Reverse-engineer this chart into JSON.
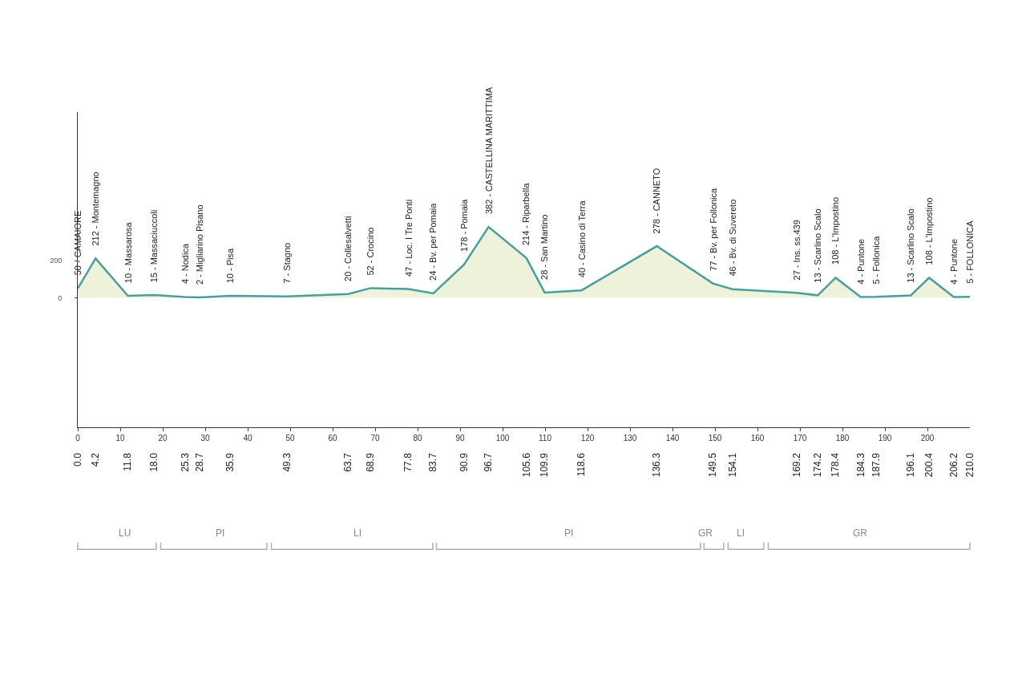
{
  "chart_data": {
    "type": "area",
    "x": [
      0.0,
      4.2,
      11.8,
      18.0,
      25.3,
      28.7,
      35.9,
      49.3,
      63.7,
      68.9,
      77.8,
      83.7,
      90.9,
      96.7,
      105.6,
      109.9,
      118.6,
      136.3,
      149.5,
      154.1,
      169.2,
      174.2,
      178.4,
      184.3,
      187.9,
      196.1,
      200.4,
      206.2,
      210.0
    ],
    "series": [
      {
        "color": "#4a9e9c",
        "values": [
          50,
          212,
          10,
          15,
          4,
          2,
          10,
          7,
          20,
          52,
          47,
          24,
          178,
          382,
          214,
          28,
          40,
          278,
          77,
          46,
          27,
          13,
          108,
          4,
          5,
          13,
          108,
          4,
          5
        ]
      }
    ],
    "xlim": [
      0,
      210
    ],
    "xticks": [
      0,
      10,
      20,
      30,
      40,
      50,
      60,
      70,
      80,
      90,
      100,
      110,
      120,
      130,
      140,
      150,
      160,
      170,
      180,
      190,
      200
    ],
    "ylim": [
      -700,
      1000
    ],
    "yticks": [
      0,
      200
    ],
    "x2lim": [
      0,
      210
    ],
    "x2ticks": [
      {
        "value": 0.0,
        "label": "0.0"
      },
      4.2,
      11.8,
      {
        "value": 18.0,
        "label": "18.0"
      },
      25.3,
      28.7,
      35.9,
      49.3,
      63.7,
      68.9,
      77.8,
      83.7,
      90.9,
      96.7,
      105.6,
      109.9,
      118.6,
      136.3,
      149.5,
      154.1,
      169.2,
      174.2,
      178.4,
      184.3,
      187.9,
      196.1,
      200.4,
      206.2,
      {
        "value": 210.0,
        "label": "210.0"
      }
    ],
    "annotations": [
      {
        "text": "50 - CAMAIORE",
        "x": 0.0,
        "y": 50
      },
      {
        "text": "212 - Montemagno",
        "x": 4.2,
        "y": 212
      },
      {
        "text": "10 - Massarosa",
        "x": 11.8,
        "y": 10
      },
      {
        "text": "15 - Massaciuccoli",
        "x": 18.0,
        "y": 15
      },
      {
        "text": "4 - Nodica",
        "x": 25.3,
        "y": 4
      },
      {
        "text": "2 - Migliarino Pisano",
        "x": 28.7,
        "y": 2
      },
      {
        "text": "10 - Pisa",
        "x": 35.9,
        "y": 10
      },
      {
        "text": "7 - Stagno",
        "x": 49.3,
        "y": 7
      },
      {
        "text": "20 - Collesalvetti",
        "x": 63.7,
        "y": 20
      },
      {
        "text": "52 - Crocino",
        "x": 68.9,
        "y": 52
      },
      {
        "text": "47 - Loc. I Tre Ponti",
        "x": 77.8,
        "y": 47
      },
      {
        "text": "24 - Bv. per Pomaia",
        "x": 83.7,
        "y": 24
      },
      {
        "text": "178 - Pomaia",
        "x": 90.9,
        "y": 178
      },
      {
        "text": "382 - CASTELLINA MARITTIMA",
        "x": 96.7,
        "y": 382
      },
      {
        "text": "214 - Riparbella",
        "x": 105.6,
        "y": 214
      },
      {
        "text": "28 - San Martino",
        "x": 109.9,
        "y": 28
      },
      {
        "text": "40 - Casino di Terra",
        "x": 118.6,
        "y": 40
      },
      {
        "text": "278 - CANNETO",
        "x": 136.3,
        "y": 278
      },
      {
        "text": "77 - Bv. per Follonica",
        "x": 149.5,
        "y": 77
      },
      {
        "text": "46 - Bv. di Suvereto",
        "x": 154.1,
        "y": 46
      },
      {
        "text": "27 - Ins. ss.439",
        "x": 169.2,
        "y": 27
      },
      {
        "text": "13 - Scarlino Scalo",
        "x": 174.2,
        "y": 13
      },
      {
        "text": "108 - L'Impostino",
        "x": 178.4,
        "y": 108
      },
      {
        "text": "4 - Puntone",
        "x": 184.3,
        "y": 4
      },
      {
        "text": "5 - Follonica",
        "x": 187.9,
        "y": 5
      },
      {
        "text": "13 - Scarlino Scalo",
        "x": 196.1,
        "y": 13
      },
      {
        "text": "108 - L'Impostino",
        "x": 200.4,
        "y": 108
      },
      {
        "text": "4 - Puntone",
        "x": 206.2,
        "y": 4
      },
      {
        "text": "5 - FOLLONICA",
        "x": 210.0,
        "y": 5
      },
      "LU",
      "PI",
      "LI",
      "PI",
      "GR",
      "LI",
      "GR"
    ]
  }
}
